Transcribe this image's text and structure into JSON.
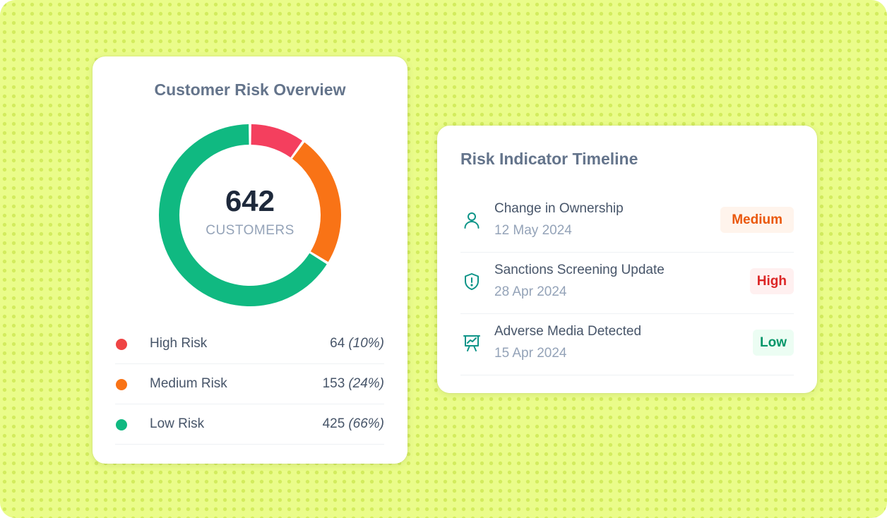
{
  "colors": {
    "background": "#eafc8a",
    "high": "#f43f5e",
    "medium": "#f97316",
    "low": "#10b981",
    "icon": "#0d9488"
  },
  "overview": {
    "title": "Customer Risk Overview",
    "total": "642",
    "total_label": "CUSTOMERS",
    "segments": [
      {
        "label": "High Risk",
        "count": "64",
        "percent": "(10%)",
        "value": 64
      },
      {
        "label": "Medium Risk",
        "count": "153",
        "percent": "(24%)",
        "value": 153
      },
      {
        "label": "Low Risk",
        "count": "425",
        "percent": "(66%)",
        "value": 425
      }
    ]
  },
  "timeline": {
    "title": "Risk Indicator Timeline",
    "events": [
      {
        "name": "Change in Ownership",
        "date": "12 May 2024",
        "level": "Medium",
        "icon": "user-icon"
      },
      {
        "name": "Sanctions Screening Update",
        "date": "28 Apr 2024",
        "level": "High",
        "icon": "shield-alert-icon"
      },
      {
        "name": "Adverse Media Detected",
        "date": "15 Apr 2024",
        "level": "Low",
        "icon": "presentation-chart-icon"
      }
    ]
  }
}
